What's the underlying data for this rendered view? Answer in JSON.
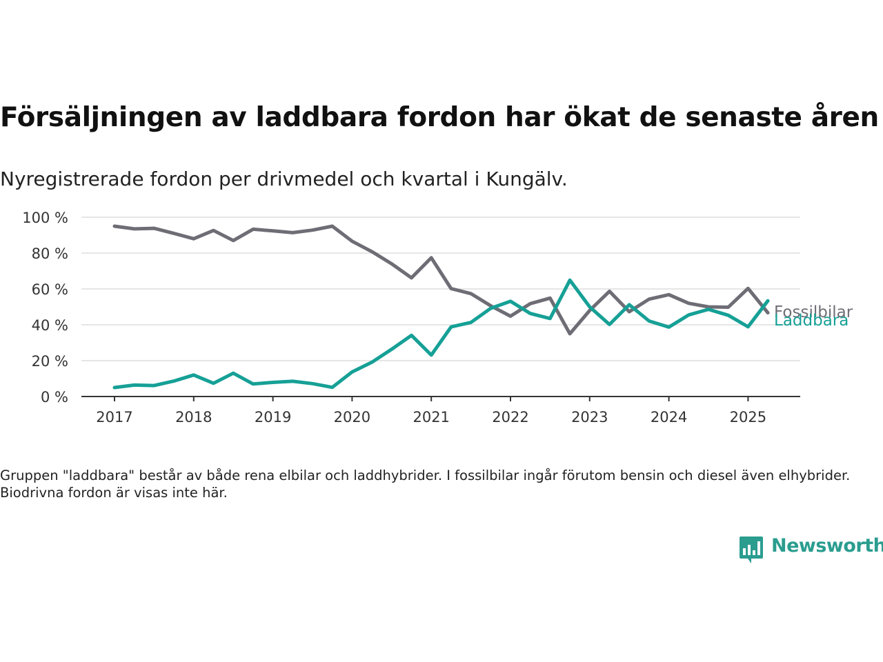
{
  "title": "Försäljningen av laddbara fordon har ökat de senaste åren",
  "subtitle": "Nyregistrerade fordon per drivmedel och kvartal i Kungälv.",
  "note": "Gruppen \"laddbara\" består av både rena elbilar och laddhybrider. I fossilbilar ingår förutom bensin och diesel även elhybrider. Biodrivna fordon är visas inte här.",
  "brand": {
    "name": "Newsworthy",
    "icon": "newsworthy-logo-icon"
  },
  "colors": {
    "fossil": "#6e6d75",
    "laddbara": "#16a096",
    "grid": "#dddddd",
    "axis": "#333333",
    "brand": "#2a9d8f"
  },
  "chart_data": {
    "type": "line",
    "x_unit": "quarter",
    "x": [
      "2017 Q1",
      "2017 Q2",
      "2017 Q3",
      "2017 Q4",
      "2018 Q1",
      "2018 Q2",
      "2018 Q3",
      "2018 Q4",
      "2019 Q1",
      "2019 Q2",
      "2019 Q3",
      "2019 Q4",
      "2020 Q1",
      "2020 Q2",
      "2020 Q3",
      "2020 Q4",
      "2021 Q1",
      "2021 Q2",
      "2021 Q3",
      "2021 Q4",
      "2022 Q1",
      "2022 Q2",
      "2022 Q3",
      "2022 Q4",
      "2023 Q1",
      "2023 Q2",
      "2023 Q3",
      "2023 Q4",
      "2024 Q1",
      "2024 Q2",
      "2024 Q3",
      "2024 Q4",
      "2025 Q1",
      "2025 Q2"
    ],
    "x_tick_labels": [
      "2017",
      "2018",
      "2019",
      "2020",
      "2021",
      "2022",
      "2023",
      "2024",
      "2025"
    ],
    "y_tick_labels": [
      "0 %",
      "20 %",
      "40 %",
      "60 %",
      "80 %",
      "100 %"
    ],
    "ylim": [
      0,
      100
    ],
    "grid": "horizontal",
    "legend": "direct labels at line ends (right)",
    "series": [
      {
        "name": "Fossilbilar",
        "color": "#6e6d75",
        "values": [
          95,
          93.5,
          93.8,
          91,
          88,
          92.6,
          87,
          93.3,
          92.4,
          91.4,
          92.8,
          95,
          86.6,
          80.8,
          74,
          66.2,
          77.4,
          60.2,
          57.4,
          50.6,
          44.8,
          51.8,
          54.9,
          35,
          48,
          58.7,
          47.3,
          54.3,
          56.8,
          52,
          50,
          49.8,
          60.3,
          46.7
        ]
      },
      {
        "name": "Laddbara",
        "color": "#16a096",
        "values": [
          5,
          6.4,
          6.1,
          8.6,
          12,
          7.4,
          13,
          7,
          7.9,
          8.5,
          7.2,
          5.1,
          13.7,
          19.1,
          26.4,
          34.1,
          23.1,
          38.8,
          41.3,
          49.2,
          53.1,
          46.3,
          43.5,
          64.9,
          50,
          40.2,
          51.2,
          42.1,
          38.7,
          45.5,
          48.6,
          45.3,
          38.9,
          53.4
        ]
      }
    ]
  }
}
